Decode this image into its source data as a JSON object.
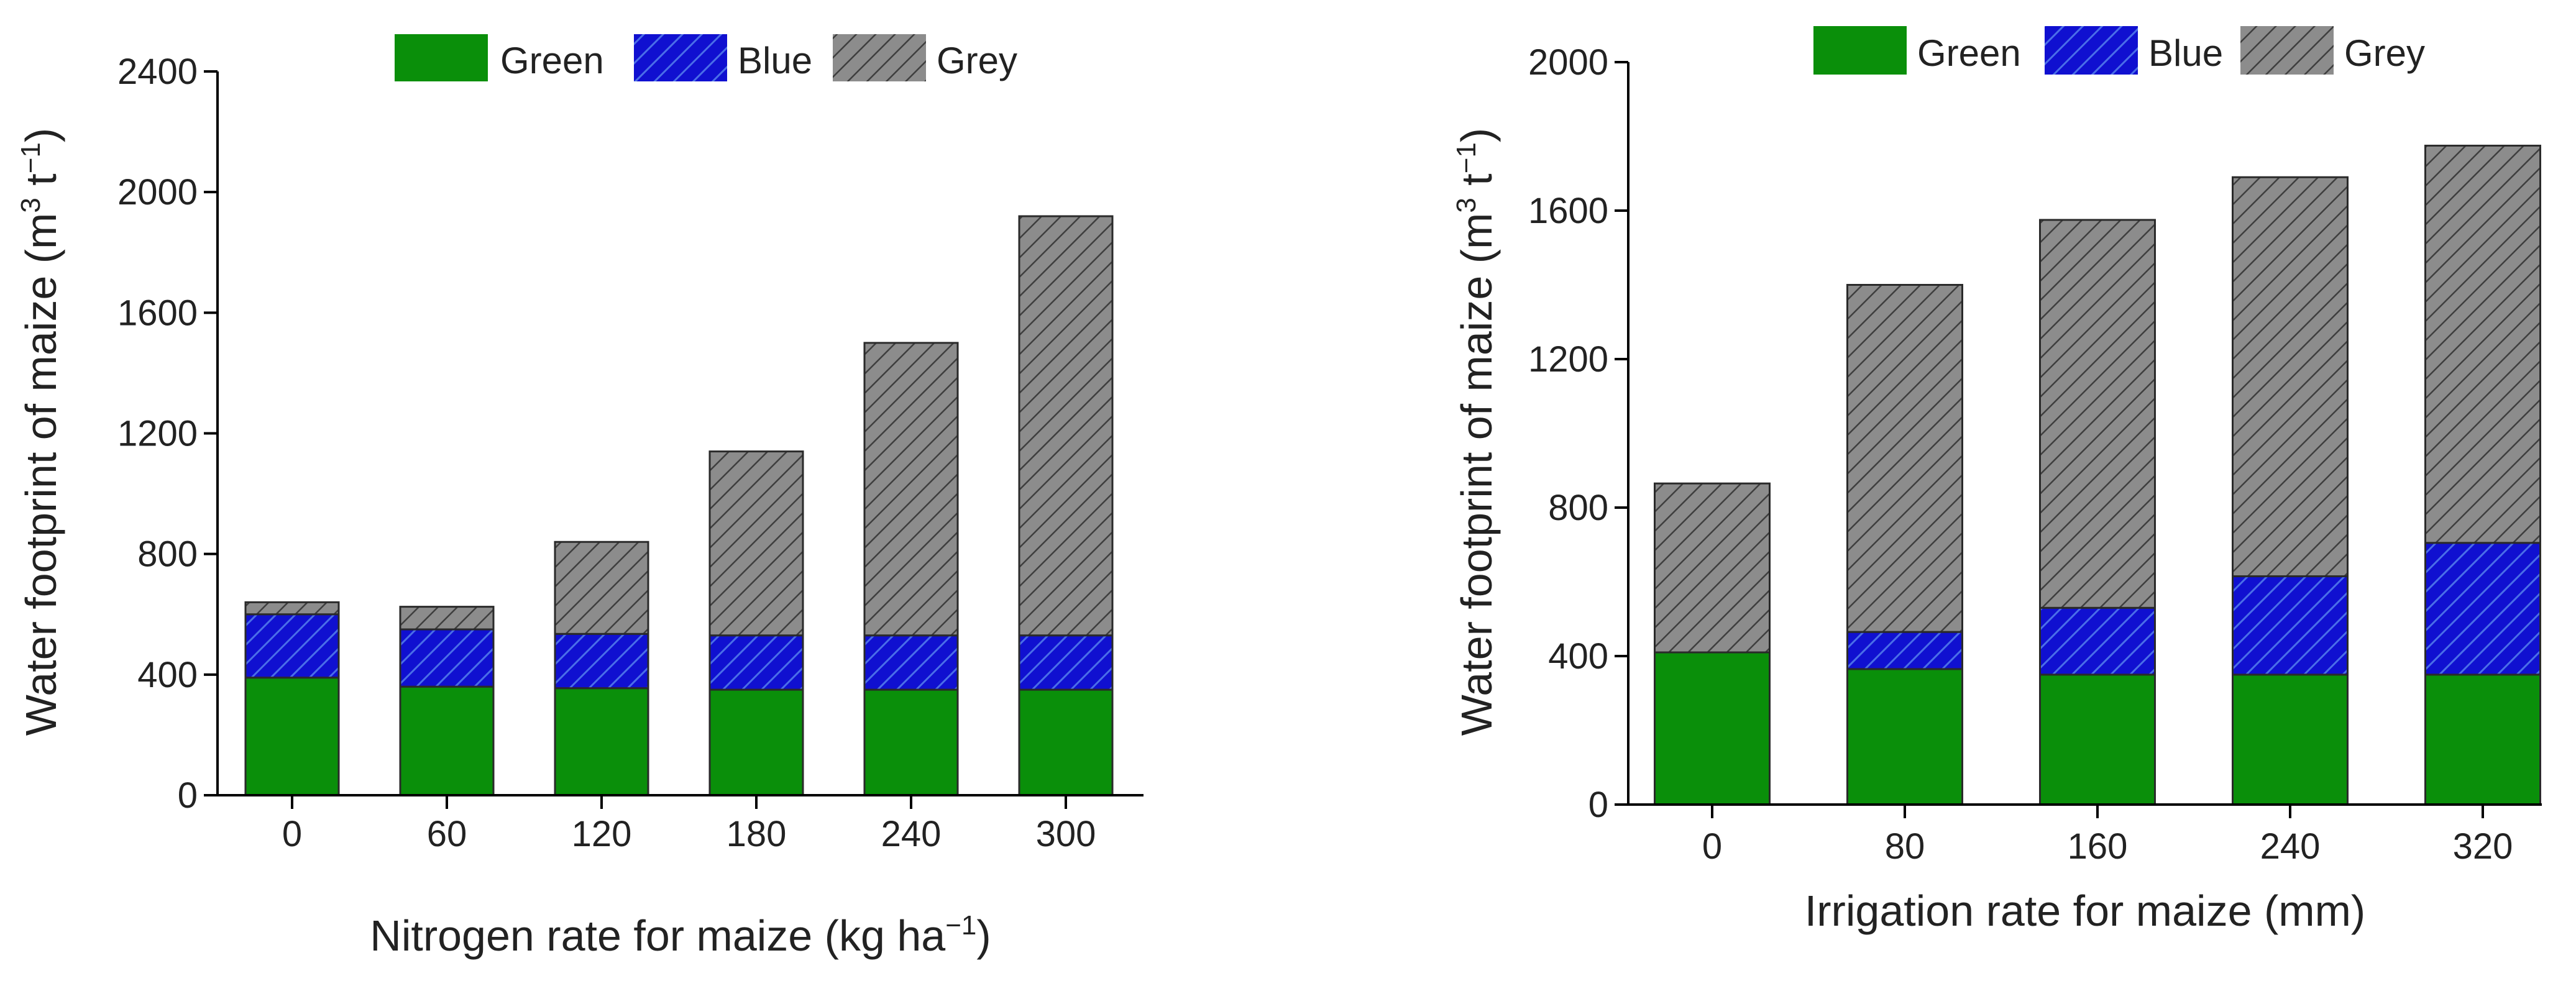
{
  "colors": {
    "green": "#0a8f0a",
    "blue": "#1010d0",
    "grey": "#8c8c8c"
  },
  "chart_data": [
    {
      "type": "bar",
      "stacked": true,
      "title": "",
      "xlabel_main": "Nitrogen rate for maize (kg ha",
      "xlabel_sup": "−1",
      "xlabel_end": ")",
      "ylabel_main": "Water footprint of maize (m",
      "ylabel_sup1": "3",
      "ylabel_mid": " t",
      "ylabel_sup2": "−1",
      "ylabel_end": ")",
      "categories": [
        "0",
        "60",
        "120",
        "180",
        "240",
        "300"
      ],
      "ylim": [
        0,
        2400
      ],
      "yticks": [
        "0",
        "400",
        "800",
        "1200",
        "1600",
        "2000",
        "2400"
      ],
      "series": [
        {
          "name": "Green",
          "values": [
            390,
            360,
            355,
            350,
            350,
            350
          ]
        },
        {
          "name": "Blue",
          "values": [
            210,
            190,
            180,
            180,
            180,
            180
          ]
        },
        {
          "name": "Grey",
          "values": [
            40,
            75,
            305,
            610,
            970,
            1390
          ]
        }
      ],
      "legend_position": "top"
    },
    {
      "type": "bar",
      "stacked": true,
      "title": "",
      "xlabel_main": "Irrigation rate for maize (mm)",
      "xlabel_sup": "",
      "xlabel_end": "",
      "ylabel_main": "Water footprint of maize (m",
      "ylabel_sup1": "3",
      "ylabel_mid": " t",
      "ylabel_sup2": "−1",
      "ylabel_end": ")",
      "categories": [
        "0",
        "80",
        "160",
        "240",
        "320"
      ],
      "ylim": [
        0,
        2000
      ],
      "yticks": [
        "0",
        "400",
        "800",
        "1200",
        "1600",
        "2000"
      ],
      "series": [
        {
          "name": "Green",
          "values": [
            410,
            365,
            350,
            350,
            350
          ]
        },
        {
          "name": "Blue",
          "values": [
            0,
            100,
            180,
            265,
            355
          ]
        },
        {
          "name": "Grey",
          "values": [
            455,
            935,
            1045,
            1075,
            1070
          ]
        }
      ],
      "legend_position": "top"
    }
  ]
}
